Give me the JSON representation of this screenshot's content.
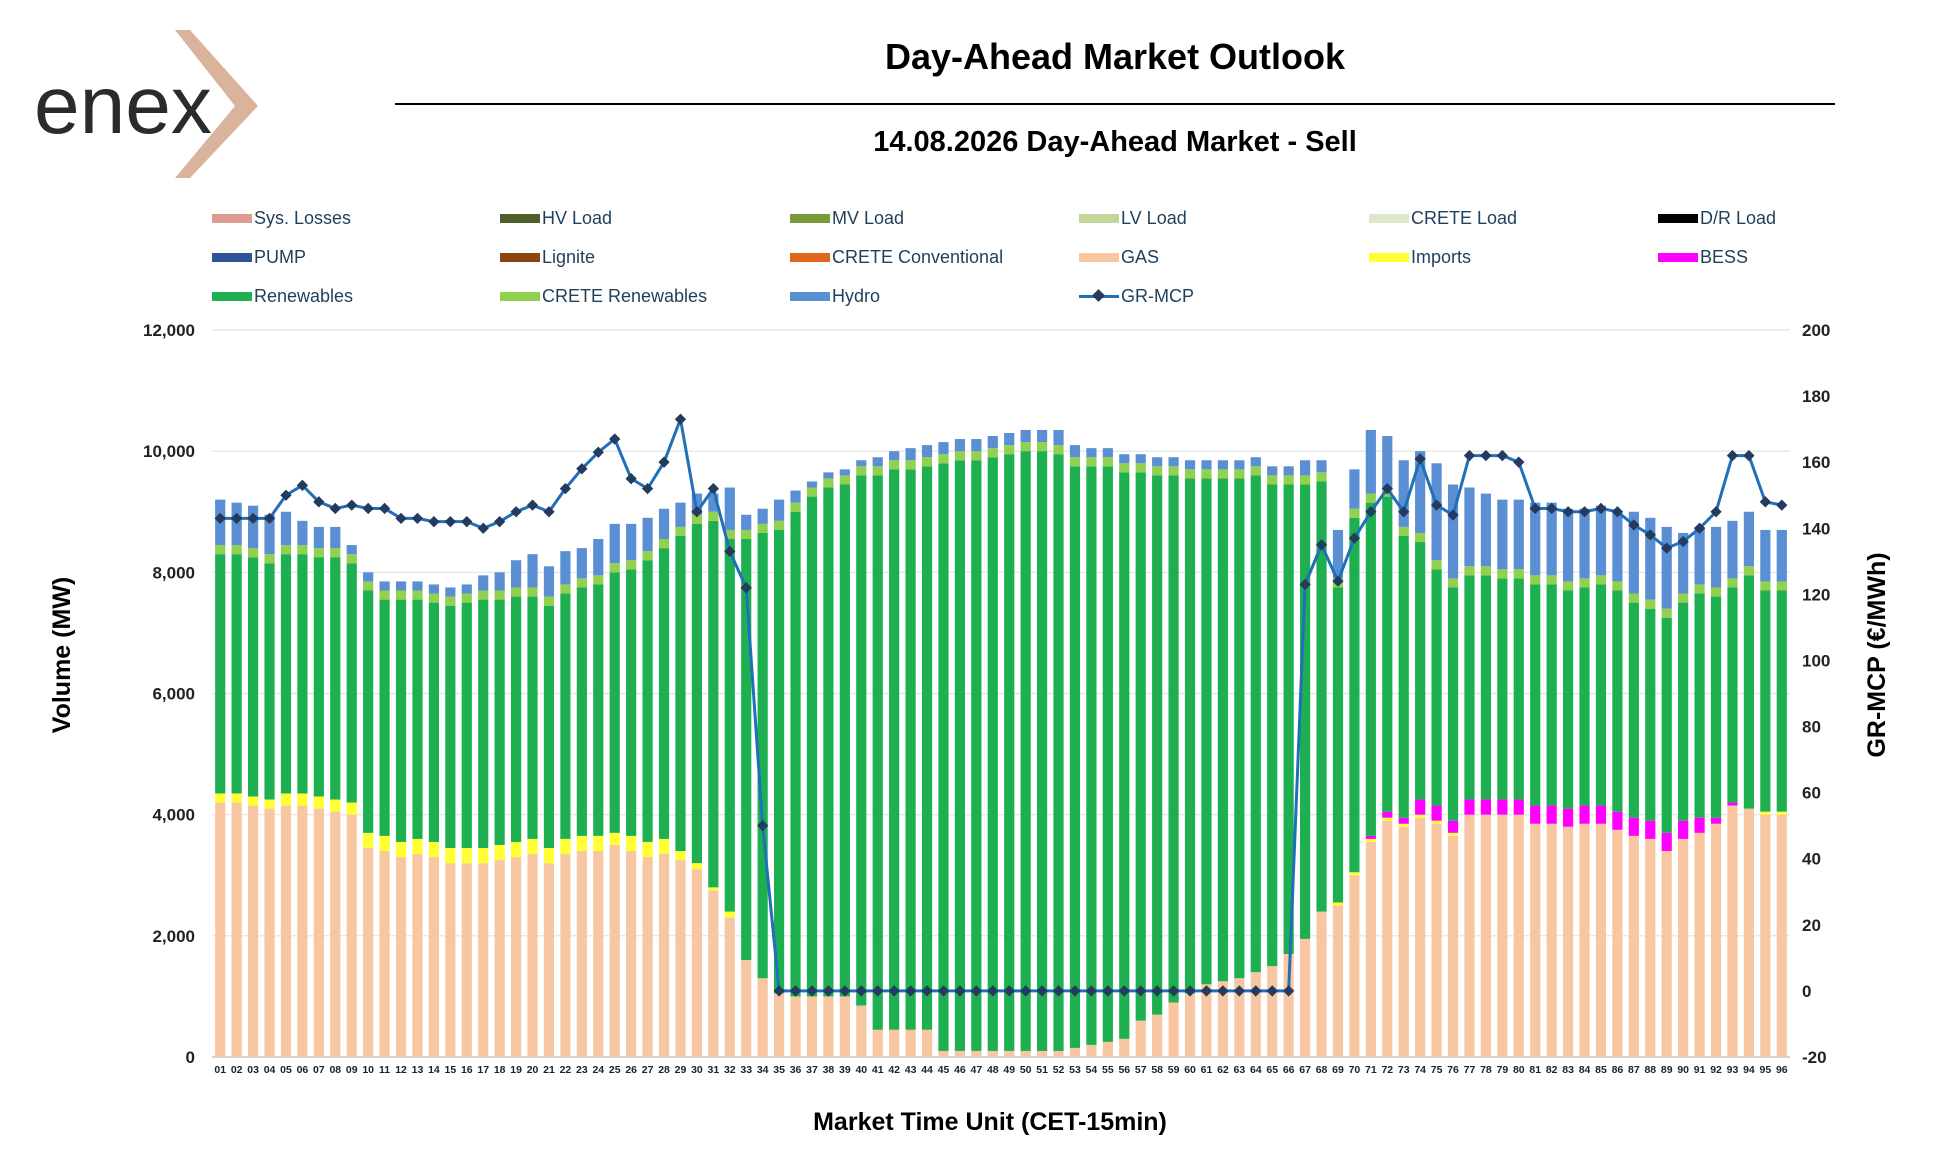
{
  "header": {
    "logo_text": "enex",
    "title": "Day-Ahead Market Outlook",
    "subtitle": "14.08.2026  Day-Ahead Market - Sell"
  },
  "legend": [
    {
      "label": "Sys. Losses",
      "color": "#dd9a93",
      "kind": "bar"
    },
    {
      "label": "HV Load",
      "color": "#4e5f2a",
      "kind": "bar"
    },
    {
      "label": "MV Load",
      "color": "#7a9a3c",
      "kind": "bar"
    },
    {
      "label": "LV Load",
      "color": "#c3d79b",
      "kind": "bar"
    },
    {
      "label": "CRETE Load",
      "color": "#dde8c8",
      "kind": "bar"
    },
    {
      "label": "D/R Load",
      "color": "#000000",
      "kind": "bar"
    },
    {
      "label": "PUMP",
      "color": "#2f5597",
      "kind": "bar"
    },
    {
      "label": "Lignite",
      "color": "#8b4513",
      "kind": "bar"
    },
    {
      "label": "CRETE Conventional",
      "color": "#e2661d",
      "kind": "bar"
    },
    {
      "label": "GAS",
      "color": "#f8c7a2",
      "kind": "bar"
    },
    {
      "label": "Imports",
      "color": "#ffff33",
      "kind": "bar"
    },
    {
      "label": "BESS",
      "color": "#ff00ff",
      "kind": "bar"
    },
    {
      "label": "Renewables",
      "color": "#1eb050",
      "kind": "bar"
    },
    {
      "label": "CRETE Renewables",
      "color": "#92d050",
      "kind": "bar"
    },
    {
      "label": "Hydro",
      "color": "#5b8fd4",
      "kind": "bar"
    },
    {
      "label": "GR-MCP",
      "color": "#1f70b8",
      "kind": "line"
    }
  ],
  "chart_data": {
    "type": "bar",
    "stacked": true,
    "title": "14.08.2026  Day-Ahead Market - Sell",
    "xlabel": "Market Time Unit (CET-15min)",
    "ylabel": "Volume (MW)",
    "y2label": "GR-MCP (€/MWh)",
    "ylim": [
      0,
      12000
    ],
    "y2lim": [
      -20,
      200
    ],
    "yticks": [
      0,
      2000,
      4000,
      6000,
      8000,
      10000,
      12000
    ],
    "yticklabels": [
      "0",
      "2,000",
      "4,000",
      "6,000",
      "8,000",
      "10,000",
      "12,000"
    ],
    "y2ticks": [
      -20,
      0,
      20,
      40,
      60,
      80,
      100,
      120,
      140,
      160,
      180,
      200
    ],
    "grid": true,
    "legend_position": "top",
    "categories": [
      "01",
      "02",
      "03",
      "04",
      "05",
      "06",
      "07",
      "08",
      "09",
      "10",
      "11",
      "12",
      "13",
      "14",
      "15",
      "16",
      "17",
      "18",
      "19",
      "20",
      "21",
      "22",
      "23",
      "24",
      "25",
      "26",
      "27",
      "28",
      "29",
      "30",
      "31",
      "32",
      "33",
      "34",
      "35",
      "36",
      "37",
      "38",
      "39",
      "40",
      "41",
      "42",
      "43",
      "44",
      "45",
      "46",
      "47",
      "48",
      "49",
      "50",
      "51",
      "52",
      "53",
      "54",
      "55",
      "56",
      "57",
      "58",
      "59",
      "60",
      "61",
      "62",
      "63",
      "64",
      "65",
      "66",
      "67",
      "68",
      "69",
      "70",
      "71",
      "72",
      "73",
      "74",
      "75",
      "76",
      "77",
      "78",
      "79",
      "80",
      "81",
      "82",
      "83",
      "84",
      "85",
      "86",
      "87",
      "88",
      "89",
      "90",
      "91",
      "92",
      "93",
      "94",
      "95",
      "96"
    ],
    "series": [
      {
        "name": "GAS",
        "color": "#f8c7a2",
        "values": [
          4200,
          4200,
          4150,
          4100,
          4150,
          4150,
          4100,
          4050,
          4000,
          3450,
          3400,
          3300,
          3350,
          3300,
          3200,
          3200,
          3200,
          3250,
          3300,
          3350,
          3200,
          3350,
          3400,
          3400,
          3500,
          3400,
          3300,
          3350,
          3250,
          3100,
          2750,
          2300,
          1600,
          1300,
          1050,
          1000,
          1000,
          1000,
          1000,
          850,
          450,
          450,
          450,
          450,
          100,
          100,
          100,
          100,
          100,
          100,
          100,
          100,
          150,
          200,
          250,
          300,
          600,
          700,
          900,
          1050,
          1200,
          1250,
          1300,
          1400,
          1500,
          1700,
          1950,
          2400,
          2500,
          3000,
          3550,
          3900,
          3800,
          3950,
          3850,
          3650,
          4000,
          4000,
          4000,
          4000,
          3850,
          3850,
          3800,
          3850,
          3850,
          3750,
          3650,
          3600,
          3400,
          3600,
          3700,
          3850,
          4150,
          4100,
          4000,
          4000
        ]
      },
      {
        "name": "Imports",
        "color": "#ffff33",
        "values": [
          150,
          150,
          150,
          150,
          200,
          200,
          200,
          200,
          200,
          250,
          250,
          250,
          250,
          250,
          250,
          250,
          250,
          250,
          250,
          250,
          250,
          250,
          250,
          250,
          200,
          250,
          250,
          250,
          150,
          100,
          50,
          100,
          0,
          0,
          0,
          0,
          0,
          0,
          0,
          0,
          0,
          0,
          0,
          0,
          0,
          0,
          0,
          0,
          0,
          0,
          0,
          0,
          0,
          0,
          0,
          0,
          0,
          0,
          0,
          0,
          0,
          0,
          0,
          0,
          0,
          0,
          0,
          0,
          50,
          50,
          50,
          50,
          50,
          50,
          50,
          50,
          0,
          0,
          0,
          0,
          0,
          0,
          0,
          0,
          0,
          0,
          0,
          0,
          0,
          0,
          0,
          0,
          0,
          0,
          50,
          50
        ]
      },
      {
        "name": "BESS",
        "color": "#ff00ff",
        "values": [
          0,
          0,
          0,
          0,
          0,
          0,
          0,
          0,
          0,
          0,
          0,
          0,
          0,
          0,
          0,
          0,
          0,
          0,
          0,
          0,
          0,
          0,
          0,
          0,
          0,
          0,
          0,
          0,
          0,
          0,
          0,
          0,
          0,
          0,
          0,
          0,
          0,
          0,
          0,
          0,
          0,
          0,
          0,
          0,
          0,
          0,
          0,
          0,
          0,
          0,
          0,
          0,
          0,
          0,
          0,
          0,
          0,
          0,
          0,
          0,
          0,
          0,
          0,
          0,
          0,
          0,
          0,
          0,
          0,
          0,
          50,
          100,
          100,
          250,
          250,
          200,
          250,
          250,
          250,
          250,
          300,
          300,
          300,
          300,
          300,
          300,
          300,
          300,
          300,
          300,
          250,
          100,
          50,
          0,
          0,
          0
        ]
      },
      {
        "name": "Renewables",
        "color": "#1eb050",
        "values": [
          3950,
          3950,
          3950,
          3900,
          3950,
          3950,
          3950,
          4000,
          3950,
          4000,
          3900,
          4000,
          3950,
          3950,
          4000,
          4050,
          4100,
          4050,
          4050,
          4000,
          4000,
          4050,
          4100,
          4150,
          4300,
          4400,
          4650,
          4800,
          5200,
          5600,
          6050,
          6150,
          6950,
          7350,
          7650,
          8000,
          8250,
          8400,
          8450,
          8750,
          9150,
          9250,
          9250,
          9300,
          9700,
          9750,
          9750,
          9800,
          9850,
          9900,
          9900,
          9850,
          9600,
          9550,
          9500,
          9350,
          9050,
          8900,
          8700,
          8500,
          8350,
          8300,
          8250,
          8200,
          7950,
          7750,
          7500,
          7100,
          5200,
          5850,
          5500,
          5200,
          4650,
          4250,
          3900,
          3850,
          3700,
          3700,
          3650,
          3650,
          3650,
          3650,
          3600,
          3600,
          3650,
          3650,
          3550,
          3500,
          3550,
          3600,
          3700,
          3650,
          3550,
          3850,
          3650,
          3650
        ]
      },
      {
        "name": "CRETE Renewables",
        "color": "#92d050",
        "values": [
          150,
          150,
          150,
          150,
          150,
          150,
          150,
          150,
          150,
          150,
          150,
          150,
          150,
          150,
          150,
          150,
          150,
          150,
          150,
          150,
          150,
          150,
          150,
          150,
          150,
          150,
          150,
          150,
          150,
          150,
          150,
          150,
          150,
          150,
          150,
          150,
          150,
          150,
          150,
          150,
          150,
          150,
          150,
          150,
          150,
          150,
          150,
          150,
          150,
          150,
          150,
          150,
          150,
          150,
          150,
          150,
          150,
          150,
          150,
          150,
          150,
          150,
          150,
          150,
          150,
          150,
          150,
          150,
          150,
          150,
          150,
          150,
          150,
          150,
          150,
          150,
          150,
          150,
          150,
          150,
          150,
          150,
          150,
          150,
          150,
          150,
          150,
          150,
          150,
          150,
          150,
          150,
          150,
          150,
          150,
          150
        ]
      },
      {
        "name": "Hydro",
        "color": "#5b8fd4",
        "values": [
          750,
          700,
          700,
          650,
          550,
          400,
          350,
          350,
          150,
          150,
          150,
          150,
          150,
          150,
          150,
          150,
          250,
          300,
          450,
          550,
          500,
          550,
          500,
          600,
          650,
          600,
          550,
          500,
          400,
          350,
          300,
          700,
          250,
          250,
          350,
          200,
          100,
          100,
          100,
          100,
          150,
          150,
          200,
          200,
          200,
          200,
          200,
          200,
          200,
          200,
          200,
          250,
          200,
          150,
          150,
          150,
          150,
          150,
          150,
          150,
          150,
          150,
          150,
          150,
          150,
          150,
          250,
          200,
          800,
          650,
          1050,
          850,
          1100,
          1350,
          1600,
          1550,
          1300,
          1200,
          1150,
          1150,
          1200,
          1200,
          1200,
          1150,
          1150,
          1150,
          1350,
          1350,
          1350,
          1000,
          950,
          1000,
          950,
          900,
          850,
          850
        ]
      }
    ],
    "mcp": {
      "name": "GR-MCP",
      "color": "#1f70b8",
      "values": [
        143,
        143,
        143,
        143,
        150,
        153,
        148,
        146,
        147,
        146,
        146,
        143,
        143,
        142,
        142,
        142,
        140,
        142,
        145,
        147,
        145,
        152,
        158,
        163,
        167,
        155,
        152,
        160,
        173,
        145,
        152,
        133,
        122,
        50,
        0,
        0,
        0,
        0,
        0,
        0,
        0,
        0,
        0,
        0,
        0,
        0,
        0,
        0,
        0,
        0,
        0,
        0,
        0,
        0,
        0,
        0,
        0,
        0,
        0,
        0,
        0,
        0,
        0,
        0,
        0,
        0,
        123,
        135,
        124,
        137,
        145,
        152,
        145,
        161,
        147,
        144,
        162,
        162,
        162,
        160,
        146,
        146,
        145,
        145,
        146,
        145,
        141,
        138,
        134,
        136,
        140,
        145,
        162,
        162,
        148,
        147
      ]
    }
  }
}
